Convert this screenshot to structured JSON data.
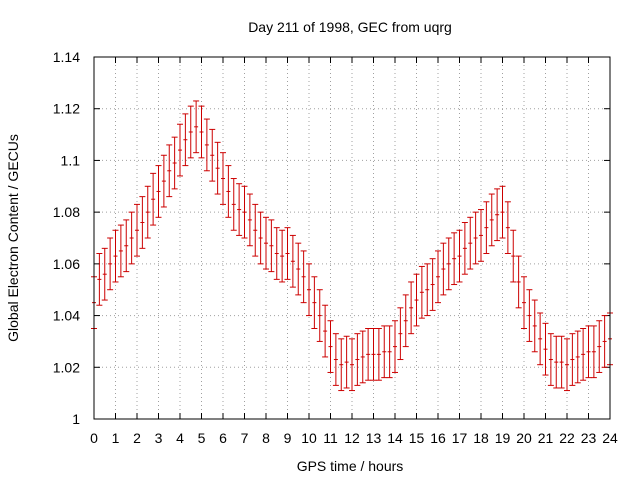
{
  "chart_data": {
    "type": "scatter",
    "title": "Day 211 of 1998, GEC from uqrg",
    "xlabel": "GPS time / hours",
    "ylabel": "Global Electron Content / GECUs",
    "xlim": [
      0,
      24
    ],
    "ylim": [
      1,
      1.14
    ],
    "xticks": [
      "0",
      "1",
      "2",
      "3",
      "4",
      "5",
      "6",
      "7",
      "8",
      "9",
      "10",
      "11",
      "12",
      "13",
      "14",
      "15",
      "16",
      "17",
      "18",
      "19",
      "20",
      "21",
      "22",
      "23",
      "24"
    ],
    "yticks": [
      "1",
      "1.02",
      "1.04",
      "1.06",
      "1.08",
      "1.1",
      "1.12",
      "1.14"
    ],
    "grid": true,
    "legend": "none",
    "error_bar_halfwidth": 0.01,
    "series": [
      {
        "color": "#cc0000",
        "points": [
          [
            0.0,
            1.045
          ],
          [
            0.25,
            1.054
          ],
          [
            0.5,
            1.056
          ],
          [
            0.75,
            1.06
          ],
          [
            1.0,
            1.063
          ],
          [
            1.25,
            1.065
          ],
          [
            1.5,
            1.067
          ],
          [
            1.75,
            1.07
          ],
          [
            2.0,
            1.073
          ],
          [
            2.25,
            1.076
          ],
          [
            2.5,
            1.08
          ],
          [
            2.75,
            1.085
          ],
          [
            3.0,
            1.088
          ],
          [
            3.25,
            1.092
          ],
          [
            3.5,
            1.096
          ],
          [
            3.75,
            1.099
          ],
          [
            4.0,
            1.104
          ],
          [
            4.25,
            1.108
          ],
          [
            4.5,
            1.111
          ],
          [
            4.75,
            1.113
          ],
          [
            5.0,
            1.111
          ],
          [
            5.25,
            1.106
          ],
          [
            5.5,
            1.102
          ],
          [
            5.75,
            1.097
          ],
          [
            6.0,
            1.093
          ],
          [
            6.25,
            1.088
          ],
          [
            6.5,
            1.083
          ],
          [
            6.75,
            1.081
          ],
          [
            7.0,
            1.08
          ],
          [
            7.25,
            1.077
          ],
          [
            7.5,
            1.073
          ],
          [
            7.75,
            1.07
          ],
          [
            8.0,
            1.068
          ],
          [
            8.25,
            1.067
          ],
          [
            8.5,
            1.064
          ],
          [
            8.75,
            1.063
          ],
          [
            9.0,
            1.064
          ],
          [
            9.25,
            1.061
          ],
          [
            9.5,
            1.058
          ],
          [
            9.75,
            1.055
          ],
          [
            10.0,
            1.05
          ],
          [
            10.25,
            1.045
          ],
          [
            10.5,
            1.04
          ],
          [
            10.75,
            1.034
          ],
          [
            11.0,
            1.028
          ],
          [
            11.25,
            1.023
          ],
          [
            11.5,
            1.021
          ],
          [
            11.75,
            1.022
          ],
          [
            12.0,
            1.021
          ],
          [
            12.25,
            1.023
          ],
          [
            12.5,
            1.024
          ],
          [
            12.75,
            1.025
          ],
          [
            13.0,
            1.025
          ],
          [
            13.25,
            1.025
          ],
          [
            13.5,
            1.026
          ],
          [
            13.75,
            1.026
          ],
          [
            14.0,
            1.028
          ],
          [
            14.25,
            1.033
          ],
          [
            14.5,
            1.038
          ],
          [
            14.75,
            1.043
          ],
          [
            15.0,
            1.046
          ],
          [
            15.25,
            1.049
          ],
          [
            15.5,
            1.05
          ],
          [
            15.75,
            1.052
          ],
          [
            16.0,
            1.055
          ],
          [
            16.25,
            1.058
          ],
          [
            16.5,
            1.06
          ],
          [
            16.75,
            1.062
          ],
          [
            17.0,
            1.063
          ],
          [
            17.25,
            1.066
          ],
          [
            17.5,
            1.068
          ],
          [
            17.75,
            1.07
          ],
          [
            18.0,
            1.071
          ],
          [
            18.25,
            1.074
          ],
          [
            18.5,
            1.077
          ],
          [
            18.75,
            1.079
          ],
          [
            19.0,
            1.08
          ],
          [
            19.25,
            1.074
          ],
          [
            19.5,
            1.063
          ],
          [
            19.75,
            1.053
          ],
          [
            20.0,
            1.045
          ],
          [
            20.25,
            1.04
          ],
          [
            20.5,
            1.036
          ],
          [
            20.75,
            1.031
          ],
          [
            21.0,
            1.027
          ],
          [
            21.25,
            1.023
          ],
          [
            21.5,
            1.022
          ],
          [
            21.75,
            1.022
          ],
          [
            22.0,
            1.021
          ],
          [
            22.25,
            1.023
          ],
          [
            22.5,
            1.024
          ],
          [
            22.75,
            1.025
          ],
          [
            23.0,
            1.026
          ],
          [
            23.25,
            1.026
          ],
          [
            23.5,
            1.028
          ],
          [
            23.75,
            1.03
          ],
          [
            24.0,
            1.031
          ]
        ]
      }
    ]
  }
}
